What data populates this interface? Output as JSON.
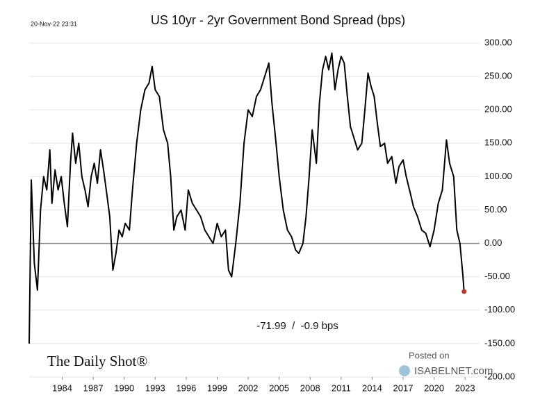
{
  "chart_data": {
    "type": "line",
    "title": "US 10yr - 2yr Government Bond Spread (bps)",
    "annotations": [
      "20-Nov-22 23:31",
      "-71.99  /  -0.9 bps"
    ],
    "watermarks": [
      "The Daily Shot®",
      "Posted on",
      "ISABELNET.com"
    ],
    "color": "#000000",
    "marker_color": "#c0392b",
    "grid": true,
    "x": [
      1980.8,
      1981.0,
      1981.3,
      1981.6,
      1981.9,
      1982.2,
      1982.5,
      1982.8,
      1983.0,
      1983.3,
      1983.6,
      1983.9,
      1984.2,
      1984.5,
      1984.8,
      1985.0,
      1985.3,
      1985.6,
      1985.9,
      1986.2,
      1986.5,
      1986.8,
      1987.1,
      1987.4,
      1987.7,
      1988.0,
      1988.3,
      1988.6,
      1988.9,
      1989.2,
      1989.5,
      1989.8,
      1990.1,
      1990.5,
      1990.8,
      1991.2,
      1991.6,
      1992.0,
      1992.4,
      1992.7,
      1993.0,
      1993.4,
      1993.8,
      1994.2,
      1994.5,
      1994.8,
      1995.1,
      1995.5,
      1995.9,
      1996.2,
      1996.6,
      1997.0,
      1997.4,
      1997.8,
      1998.2,
      1998.6,
      1999.0,
      1999.4,
      1999.8,
      2000.1,
      2000.4,
      2000.8,
      2001.2,
      2001.6,
      2002.0,
      2002.4,
      2002.8,
      2003.2,
      2003.6,
      2004.0,
      2004.3,
      2004.7,
      2005.0,
      2005.4,
      2005.8,
      2006.2,
      2006.6,
      2006.9,
      2007.3,
      2007.6,
      2007.9,
      2008.2,
      2008.6,
      2008.9,
      2009.2,
      2009.5,
      2009.8,
      2010.1,
      2010.4,
      2010.7,
      2011.0,
      2011.3,
      2011.6,
      2011.9,
      2012.2,
      2012.6,
      2013.0,
      2013.3,
      2013.6,
      2013.9,
      2014.2,
      2014.5,
      2014.8,
      2015.2,
      2015.5,
      2015.9,
      2016.3,
      2016.6,
      2017.0,
      2017.3,
      2017.7,
      2018.0,
      2018.4,
      2018.8,
      2019.2,
      2019.6,
      2020.0,
      2020.4,
      2020.8,
      2021.2,
      2021.5,
      2021.9,
      2022.2,
      2022.5,
      2022.8,
      2022.9
    ],
    "values": [
      -150,
      95,
      -30,
      -70,
      50,
      100,
      80,
      140,
      60,
      110,
      80,
      100,
      60,
      25,
      120,
      165,
      120,
      150,
      100,
      80,
      55,
      100,
      120,
      90,
      140,
      110,
      75,
      40,
      -40,
      -15,
      20,
      10,
      30,
      20,
      80,
      150,
      200,
      230,
      240,
      265,
      230,
      220,
      170,
      150,
      100,
      20,
      40,
      50,
      20,
      80,
      60,
      50,
      40,
      20,
      10,
      0,
      30,
      10,
      20,
      -40,
      -50,
      0,
      60,
      150,
      200,
      190,
      220,
      230,
      250,
      270,
      210,
      150,
      100,
      50,
      20,
      10,
      -10,
      -15,
      0,
      40,
      100,
      170,
      120,
      210,
      260,
      280,
      260,
      285,
      230,
      260,
      280,
      270,
      220,
      175,
      160,
      140,
      150,
      200,
      255,
      235,
      220,
      180,
      145,
      150,
      120,
      130,
      90,
      115,
      125,
      100,
      75,
      55,
      40,
      20,
      15,
      -5,
      20,
      60,
      80,
      155,
      120,
      100,
      20,
      0,
      -50,
      -72
    ],
    "xlim": [
      1980.8,
      2024.4
    ],
    "xticks": [
      1984,
      1987,
      1990,
      1993,
      1996,
      1999,
      2002,
      2005,
      2008,
      2011,
      2014,
      2017,
      2020,
      2023
    ],
    "ylim": [
      -200,
      300
    ],
    "yticks": [
      {
        "value": -200,
        "label": "-200.00"
      },
      {
        "value": -150,
        "label": "-150.00"
      },
      {
        "value": -100,
        "label": "-100.00"
      },
      {
        "value": -50,
        "label": "-50.00"
      },
      {
        "value": 0,
        "label": "0.00"
      },
      {
        "value": 50,
        "label": "50.00"
      },
      {
        "value": 100,
        "label": "100.00"
      },
      {
        "value": 150,
        "label": "150.00"
      },
      {
        "value": 200,
        "label": "200.00"
      },
      {
        "value": 250,
        "label": "250.00"
      },
      {
        "value": 300,
        "label": "300.00"
      }
    ]
  }
}
